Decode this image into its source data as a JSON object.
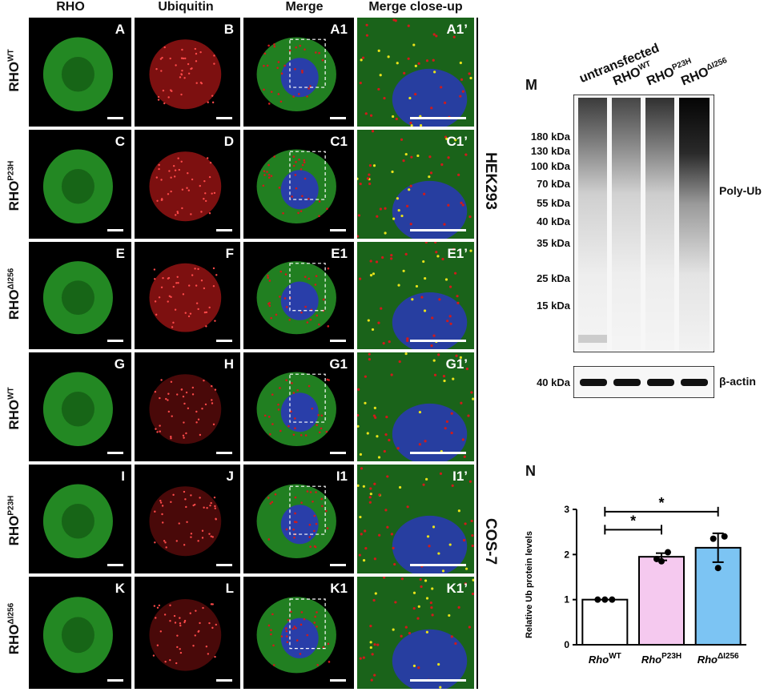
{
  "column_headers": [
    "RHO",
    "Ubiquitin",
    "Merge",
    "Merge close-up"
  ],
  "row_labels": [
    {
      "base": "RHO",
      "sup": "WT"
    },
    {
      "base": "RHO",
      "sup": "P23H"
    },
    {
      "base": "RHO",
      "sup": "ΔI256"
    },
    {
      "base": "RHO",
      "sup": "WT"
    },
    {
      "base": "RHO",
      "sup": "P23H"
    },
    {
      "base": "RHO",
      "sup": "ΔI256"
    }
  ],
  "panel_labels": [
    [
      "A",
      "B",
      "A1",
      "A1’"
    ],
    [
      "C",
      "D",
      "C1",
      "C1’"
    ],
    [
      "E",
      "F",
      "E1",
      "E1’"
    ],
    [
      "G",
      "H",
      "G1",
      "G1’"
    ],
    [
      "I",
      "J",
      "I1",
      "I1’"
    ],
    [
      "K",
      "L",
      "K1",
      "K1’"
    ]
  ],
  "cell_lines": [
    "HEK293",
    "COS-7"
  ],
  "blot": {
    "panel_letter": "M",
    "lanes": [
      {
        "base": "untransfected",
        "sup": ""
      },
      {
        "base": "RHO",
        "sup": "WT"
      },
      {
        "base": "RHO",
        "sup": "P23H"
      },
      {
        "base": "RHO",
        "sup": "ΔI256"
      }
    ],
    "mw_markers": [
      "180 kDa",
      "130 kDa",
      "100 kDa",
      "70 kDa",
      "55 kDa",
      "40 kDa",
      "35 kDa",
      "25 kDa",
      "15 kDa"
    ],
    "target_label": "Poly-Ub",
    "loading_marker": "40 kDa",
    "loading_label": "β-actin"
  },
  "chart_data": {
    "panel_letter": "N",
    "type": "bar",
    "categories": [
      {
        "base": "Rho",
        "sup": "WT"
      },
      {
        "base": "Rho",
        "sup": "P23H"
      },
      {
        "base": "Rho",
        "sup": "ΔI256"
      }
    ],
    "values": [
      1.0,
      1.95,
      2.15
    ],
    "errors": [
      0.0,
      0.08,
      0.32
    ],
    "points": [
      [
        1.0,
        1.0,
        1.0
      ],
      [
        1.9,
        2.05,
        1.85
      ],
      [
        2.35,
        2.4,
        1.7
      ]
    ],
    "bar_colors": [
      "#ffffff",
      "#f5c9ef",
      "#7cc4f3"
    ],
    "ylabel": "Relative Ub protein levels",
    "ylim": [
      0,
      3
    ],
    "yticks": [
      "0",
      "1",
      "2",
      "3"
    ],
    "significance": [
      {
        "from": 0,
        "to": 1,
        "label": "*"
      },
      {
        "from": 0,
        "to": 2,
        "label": "*"
      }
    ]
  }
}
